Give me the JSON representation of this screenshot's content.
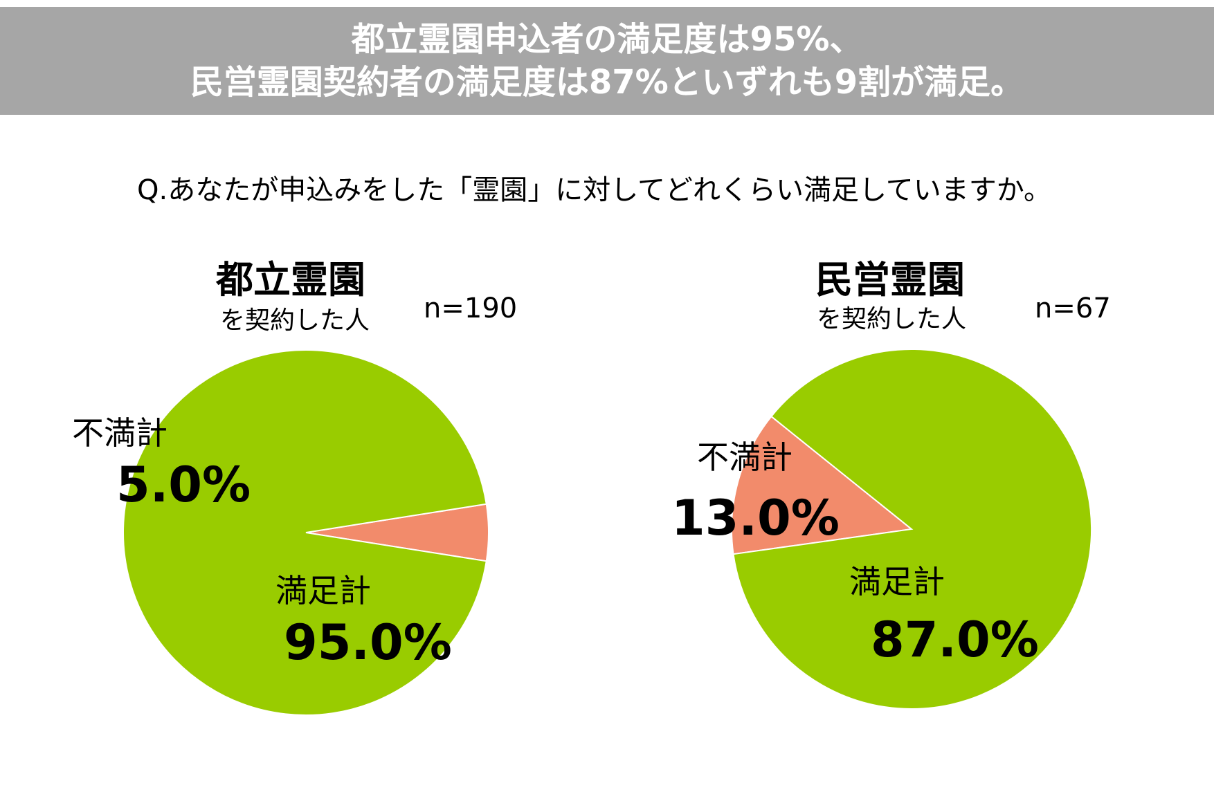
{
  "header": {
    "line1": "都立霊園申込者の満足度は95%、",
    "line2": "民営霊園契約者の満足度は87%といずれも9割が満足。"
  },
  "question": "Q.あなたが申込みをした「霊園」に対してどれくらい満足していますか。",
  "colors": {
    "satisfied": "#99cc00",
    "dissatisfied": "#f28b6b",
    "banner": "#a6a6a6"
  },
  "chart_data": [
    {
      "type": "pie",
      "title": "都立霊園",
      "subtitle": "を契約した人",
      "n": "n=190",
      "slices": [
        {
          "label": "不満計",
          "value": 5.0,
          "display": "5.0%",
          "color": "#f28b6b"
        },
        {
          "label": "満足計",
          "value": 95.0,
          "display": "95.0%",
          "color": "#99cc00"
        }
      ]
    },
    {
      "type": "pie",
      "title": "民営霊園",
      "subtitle": "を契約した人",
      "n": "n=67",
      "slices": [
        {
          "label": "不満計",
          "value": 13.0,
          "display": "13.0%",
          "color": "#f28b6b"
        },
        {
          "label": "満足計",
          "value": 87.0,
          "display": "87.0%",
          "color": "#99cc00"
        }
      ]
    }
  ]
}
